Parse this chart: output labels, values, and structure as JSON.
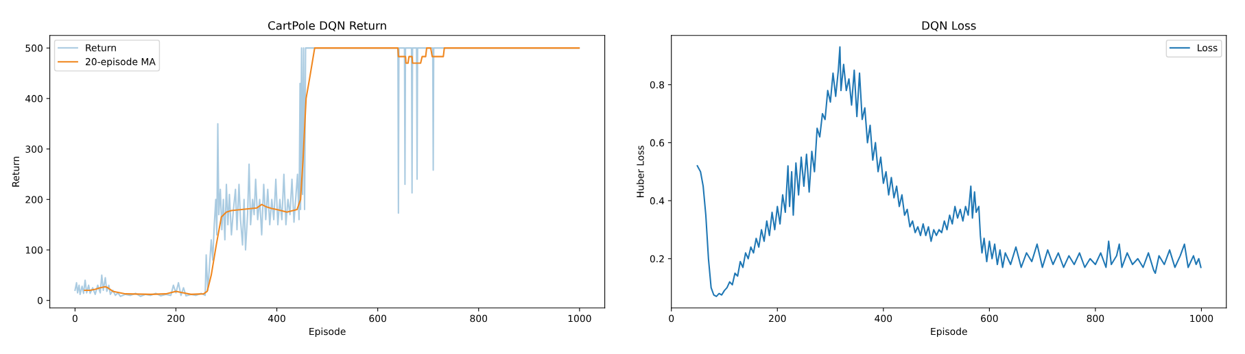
{
  "chart_data": [
    {
      "type": "line",
      "title": "CartPole DQN Return",
      "xlabel": "Episode",
      "ylabel": "Return",
      "xlim": [
        -50,
        1050
      ],
      "ylim": [
        -15,
        525
      ],
      "xticks": [
        0,
        200,
        400,
        600,
        800,
        1000
      ],
      "yticks": [
        0,
        100,
        200,
        300,
        400,
        500
      ],
      "legend": "top left",
      "grid": false,
      "series": [
        {
          "name": "Return",
          "color": "#aacbe1",
          "x": [
            0,
            3,
            5,
            8,
            10,
            14,
            17,
            20,
            23,
            27,
            30,
            35,
            40,
            45,
            50,
            53,
            56,
            60,
            63,
            67,
            70,
            75,
            80,
            85,
            90,
            100,
            110,
            120,
            130,
            140,
            150,
            160,
            170,
            180,
            190,
            195,
            200,
            205,
            210,
            215,
            220,
            230,
            240,
            250,
            258,
            260,
            263,
            266,
            270,
            273,
            276,
            279,
            281,
            283,
            285,
            288,
            291,
            294,
            297,
            300,
            303,
            306,
            310,
            314,
            318,
            321,
            325,
            328,
            332,
            335,
            338,
            342,
            345,
            348,
            352,
            355,
            358,
            362,
            366,
            370,
            374,
            378,
            382,
            386,
            390,
            394,
            398,
            402,
            406,
            410,
            414,
            418,
            422,
            426,
            430,
            434,
            438,
            441,
            444,
            446,
            447,
            449,
            451,
            453,
            455,
            457,
            460,
            640,
            641,
            642,
            653,
            654,
            655,
            667,
            668,
            669,
            677,
            678,
            679,
            709,
            710,
            711,
            999
          ],
          "values": [
            20,
            35,
            15,
            30,
            12,
            28,
            14,
            40,
            15,
            30,
            14,
            25,
            12,
            30,
            15,
            50,
            20,
            45,
            18,
            30,
            12,
            20,
            10,
            15,
            8,
            12,
            10,
            14,
            8,
            12,
            10,
            14,
            9,
            12,
            10,
            30,
            15,
            35,
            10,
            25,
            9,
            12,
            10,
            14,
            10,
            90,
            20,
            60,
            120,
            80,
            150,
            200,
            130,
            350,
            170,
            220,
            140,
            200,
            120,
            230,
            150,
            210,
            130,
            180,
            220,
            140,
            230,
            160,
            110,
            200,
            100,
            170,
            270,
            150,
            200,
            170,
            240,
            160,
            200,
            130,
            230,
            160,
            220,
            150,
            200,
            160,
            240,
            150,
            200,
            160,
            250,
            150,
            200,
            170,
            240,
            155,
            210,
            250,
            160,
            430,
            180,
            500,
            210,
            500,
            180,
            500,
            500,
            500,
            173,
            500,
            500,
            230,
            500,
            500,
            213,
            500,
            500,
            240,
            500,
            500,
            258,
            500,
            500
          ]
        },
        {
          "name": "20-episode MA",
          "color": "#f0871f",
          "x": [
            19,
            30,
            40,
            50,
            60,
            65,
            75,
            90,
            100,
            150,
            180,
            200,
            210,
            230,
            255,
            262,
            270,
            280,
            290,
            300,
            310,
            330,
            360,
            370,
            380,
            390,
            400,
            420,
            440,
            447,
            452,
            458,
            465,
            470,
            475,
            640,
            641,
            655,
            656,
            660,
            662,
            668,
            669,
            685,
            688,
            695,
            697,
            705,
            708,
            730,
            732,
            999
          ],
          "values": [
            20,
            20,
            22,
            25,
            27,
            25,
            18,
            15,
            13,
            12,
            13,
            18,
            16,
            12,
            13,
            18,
            50,
            110,
            165,
            175,
            178,
            180,
            183,
            190,
            185,
            182,
            180,
            175,
            180,
            200,
            280,
            400,
            440,
            470,
            500,
            500,
            483,
            483,
            470,
            470,
            483,
            483,
            470,
            470,
            483,
            483,
            500,
            500,
            483,
            483,
            500,
            500
          ]
        }
      ]
    },
    {
      "type": "line",
      "title": "DQN Loss",
      "xlabel": "Episode",
      "ylabel": "Huber Loss",
      "xlim": [
        0,
        1047
      ],
      "ylim": [
        0.03,
        0.97
      ],
      "xticks": [
        0,
        200,
        400,
        600,
        800,
        1000
      ],
      "yticks": [
        0.2,
        0.4,
        0.6,
        0.8
      ],
      "legend": "top right",
      "grid": false,
      "series": [
        {
          "name": "Loss",
          "color": "#1f77b4",
          "x": [
            49,
            55,
            60,
            65,
            70,
            75,
            80,
            85,
            90,
            95,
            100,
            105,
            110,
            115,
            120,
            125,
            130,
            135,
            140,
            145,
            150,
            155,
            160,
            165,
            170,
            175,
            180,
            185,
            190,
            195,
            200,
            205,
            210,
            215,
            220,
            223,
            227,
            230,
            235,
            240,
            245,
            250,
            255,
            260,
            265,
            270,
            275,
            280,
            285,
            290,
            295,
            300,
            305,
            310,
            315,
            318,
            320,
            325,
            330,
            335,
            340,
            345,
            350,
            355,
            360,
            365,
            370,
            375,
            380,
            385,
            390,
            395,
            400,
            405,
            410,
            415,
            420,
            425,
            430,
            435,
            440,
            445,
            450,
            455,
            460,
            465,
            470,
            475,
            480,
            485,
            490,
            495,
            500,
            505,
            510,
            515,
            520,
            525,
            530,
            535,
            540,
            545,
            550,
            555,
            560,
            565,
            568,
            572,
            575,
            580,
            583,
            586,
            590,
            595,
            600,
            605,
            610,
            615,
            620,
            625,
            630,
            640,
            650,
            660,
            670,
            680,
            690,
            700,
            710,
            720,
            730,
            740,
            750,
            760,
            770,
            780,
            790,
            800,
            810,
            820,
            825,
            830,
            840,
            845,
            850,
            860,
            870,
            880,
            890,
            900,
            910,
            913,
            920,
            930,
            940,
            950,
            960,
            968,
            975,
            985,
            990,
            995,
            999
          ],
          "values": [
            0.52,
            0.5,
            0.45,
            0.35,
            0.2,
            0.1,
            0.075,
            0.07,
            0.08,
            0.075,
            0.09,
            0.1,
            0.12,
            0.11,
            0.15,
            0.14,
            0.19,
            0.17,
            0.22,
            0.2,
            0.24,
            0.22,
            0.27,
            0.24,
            0.3,
            0.26,
            0.33,
            0.28,
            0.36,
            0.3,
            0.38,
            0.32,
            0.42,
            0.36,
            0.52,
            0.38,
            0.5,
            0.35,
            0.53,
            0.42,
            0.55,
            0.45,
            0.56,
            0.43,
            0.57,
            0.5,
            0.65,
            0.62,
            0.7,
            0.68,
            0.78,
            0.74,
            0.84,
            0.76,
            0.85,
            0.93,
            0.78,
            0.87,
            0.78,
            0.82,
            0.73,
            0.85,
            0.69,
            0.84,
            0.68,
            0.72,
            0.6,
            0.66,
            0.54,
            0.6,
            0.5,
            0.55,
            0.46,
            0.5,
            0.42,
            0.48,
            0.41,
            0.45,
            0.38,
            0.42,
            0.35,
            0.37,
            0.31,
            0.33,
            0.29,
            0.31,
            0.28,
            0.32,
            0.28,
            0.31,
            0.26,
            0.3,
            0.28,
            0.3,
            0.29,
            0.33,
            0.3,
            0.35,
            0.32,
            0.38,
            0.34,
            0.37,
            0.33,
            0.38,
            0.35,
            0.45,
            0.34,
            0.43,
            0.36,
            0.38,
            0.28,
            0.22,
            0.27,
            0.19,
            0.26,
            0.2,
            0.25,
            0.18,
            0.23,
            0.17,
            0.22,
            0.18,
            0.24,
            0.17,
            0.22,
            0.19,
            0.25,
            0.17,
            0.23,
            0.18,
            0.22,
            0.17,
            0.21,
            0.18,
            0.22,
            0.17,
            0.2,
            0.18,
            0.22,
            0.17,
            0.26,
            0.18,
            0.21,
            0.25,
            0.17,
            0.22,
            0.18,
            0.2,
            0.17,
            0.22,
            0.16,
            0.15,
            0.21,
            0.18,
            0.23,
            0.17,
            0.21,
            0.25,
            0.17,
            0.21,
            0.18,
            0.2,
            0.17
          ]
        }
      ]
    }
  ]
}
